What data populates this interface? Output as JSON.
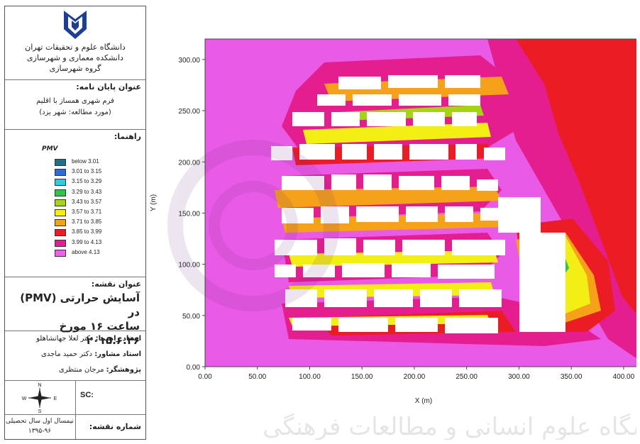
{
  "sidebar": {
    "university_lines": [
      "دانشگاه علوم و تحقیقات تهران",
      "دانشکده معماری و شهرسازی",
      "گروه شهرسازی"
    ],
    "thesis_label": "عنوان پایان نامه:",
    "thesis_title": "فرم شهری همساز با اقلیم",
    "thesis_case": "(مورد مطالعه: شهر یزد)",
    "legend_label": "راهنما:",
    "legend_title": "PMV",
    "legend": [
      {
        "label": "below 3.01",
        "color": "#1f6f8b"
      },
      {
        "label": "3.01 to 3.15",
        "color": "#2b6fd6"
      },
      {
        "label": "3.15 to 3.29",
        "color": "#2ecbe3"
      },
      {
        "label": "3.29 to 3.43",
        "color": "#2fc54a"
      },
      {
        "label": "3.43 to 3.57",
        "color": "#a4d414"
      },
      {
        "label": "3.57 to 3.71",
        "color": "#f3ef14"
      },
      {
        "label": "3.71 to 3.85",
        "color": "#f5a21a"
      },
      {
        "label": "3.85 to 3.99",
        "color": "#ec1c24"
      },
      {
        "label": "3.99 to 4.13",
        "color": "#e41e8e"
      },
      {
        "label": "above 4.13",
        "color": "#f45ef0"
      }
    ],
    "map_title_label": "عنوان نقشه:",
    "map_title_line1": "آسایش حرارتی (PMV) در",
    "map_title_line2": "ساعت ۱۶ مورخ ۲۰۱۵.۶.۲۶",
    "advisor": {
      "label": "استاد راهنما:",
      "name": "دکتر لعلا جهانشاهلو"
    },
    "consultant": {
      "label": "استاد مشاور:",
      "name": "دکتر حمید ماجدی"
    },
    "researcher": {
      "label": "پژوهشگر:",
      "name": "مرجان منتظری"
    },
    "north_label": "N",
    "compass_w": "W",
    "compass_e": "E",
    "compass_s": "S",
    "scale_label": "SC:",
    "semester_line1": "نیمسال اول سال تحصیلی",
    "semester_line2": "۱۳۹۵-۹۶",
    "map_number_label": "شماره نقشه:"
  },
  "chart_data": {
    "type": "heatmap",
    "xlabel": "X (m)",
    "ylabel": "Y (m)",
    "xlim": [
      0,
      415
    ],
    "ylim": [
      0,
      320
    ],
    "x_ticks": [
      "0.00",
      "50.00",
      "100.00",
      "150.00",
      "200.00",
      "250.00",
      "300.00",
      "350.00",
      "400.00"
    ],
    "y_ticks": [
      "0.00",
      "50.00",
      "100.00",
      "150.00",
      "200.00",
      "250.00",
      "300.00"
    ],
    "background_color": "#e95be6"
  },
  "watermark_text": "پژوهشگاه علوم انسانی و مطالعات فرهنگی"
}
